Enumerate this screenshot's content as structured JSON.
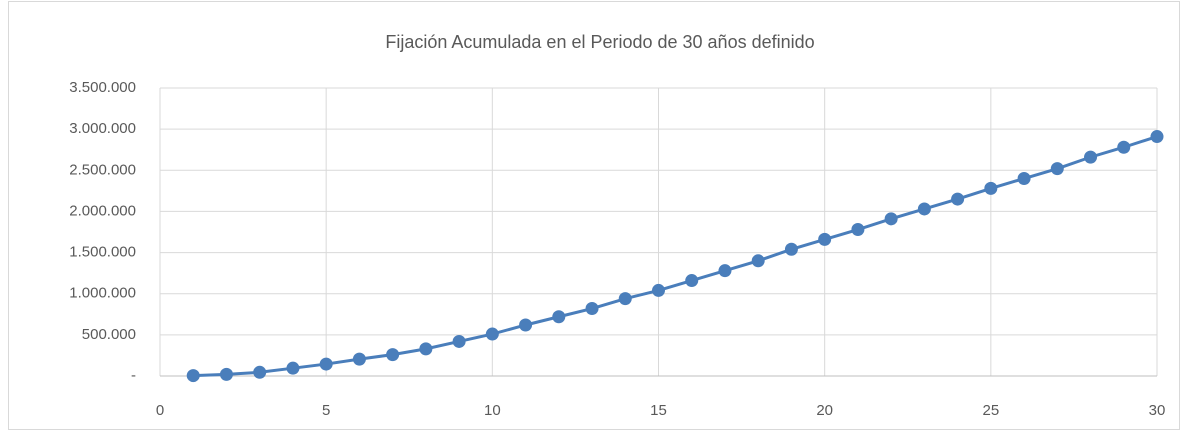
{
  "chart_data": {
    "type": "line",
    "title": "Fijación Acumulada en el Periodo de 30 años definido",
    "x": [
      1,
      2,
      3,
      4,
      5,
      6,
      7,
      8,
      9,
      10,
      11,
      12,
      13,
      14,
      15,
      16,
      17,
      18,
      19,
      20,
      21,
      22,
      23,
      24,
      25,
      26,
      27,
      28,
      29,
      30
    ],
    "series": [
      {
        "color": "#4a7ebb",
        "values": [
          5000,
          20000,
          45000,
          95000,
          145000,
          205000,
          260000,
          330000,
          420000,
          510000,
          620000,
          720000,
          820000,
          940000,
          1040000,
          1160000,
          1280000,
          1400000,
          1540000,
          1660000,
          1780000,
          1910000,
          2030000,
          2150000,
          2280000,
          2400000,
          2520000,
          2660000,
          2780000,
          2910000
        ]
      }
    ],
    "xlim": [
      0,
      30
    ],
    "xticks": [
      0,
      5,
      10,
      15,
      20,
      25,
      30
    ],
    "ylim": [
      0,
      3500000
    ],
    "yticks": [
      {
        "value": 0,
        "label": "-"
      },
      {
        "value": 500000,
        "label": "500.000"
      },
      {
        "value": 1000000,
        "label": "1.000.000"
      },
      {
        "value": 1500000,
        "label": "1.500.000"
      },
      {
        "value": 2000000,
        "label": "2.000.000"
      },
      {
        "value": 2500000,
        "label": "2.500.000"
      },
      {
        "value": 3000000,
        "label": "3.000.000"
      },
      {
        "value": 3500000,
        "label": "3.500.000"
      }
    ],
    "grid": true
  }
}
